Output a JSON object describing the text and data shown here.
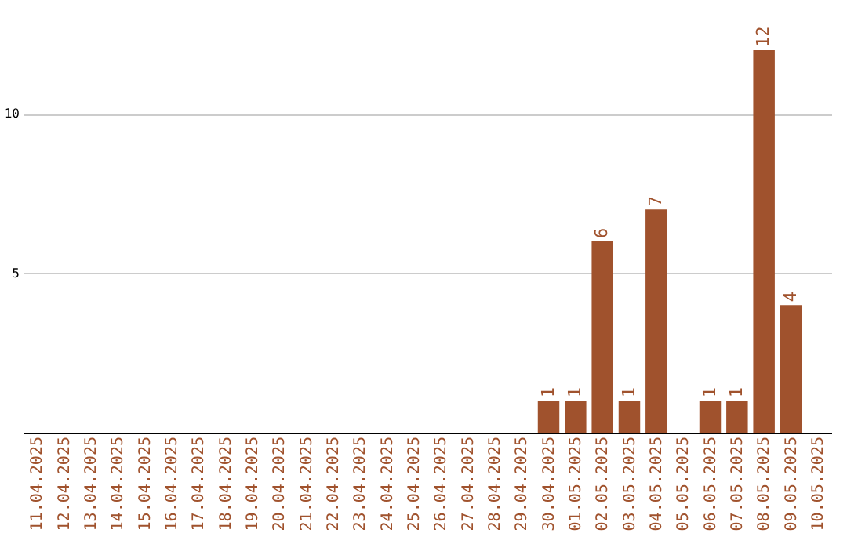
{
  "chart_data": {
    "type": "bar",
    "categories": [
      "11.04.2025",
      "12.04.2025",
      "13.04.2025",
      "14.04.2025",
      "15.04.2025",
      "16.04.2025",
      "17.04.2025",
      "18.04.2025",
      "19.04.2025",
      "20.04.2025",
      "21.04.2025",
      "22.04.2025",
      "23.04.2025",
      "24.04.2025",
      "25.04.2025",
      "26.04.2025",
      "27.04.2025",
      "28.04.2025",
      "29.04.2025",
      "30.04.2025",
      "01.05.2025",
      "02.05.2025",
      "03.05.2025",
      "04.05.2025",
      "05.05.2025",
      "06.05.2025",
      "07.05.2025",
      "08.05.2025",
      "09.05.2025",
      "10.05.2025"
    ],
    "values": [
      null,
      null,
      null,
      null,
      null,
      null,
      null,
      null,
      null,
      null,
      null,
      null,
      null,
      null,
      null,
      null,
      null,
      null,
      null,
      1,
      1,
      6,
      1,
      7,
      null,
      1,
      1,
      12,
      4,
      null
    ],
    "color": "#a0522d",
    "ylim": [
      0,
      12
    ],
    "yticks": [
      5,
      10
    ],
    "grid": "y",
    "data_labels": true
  }
}
